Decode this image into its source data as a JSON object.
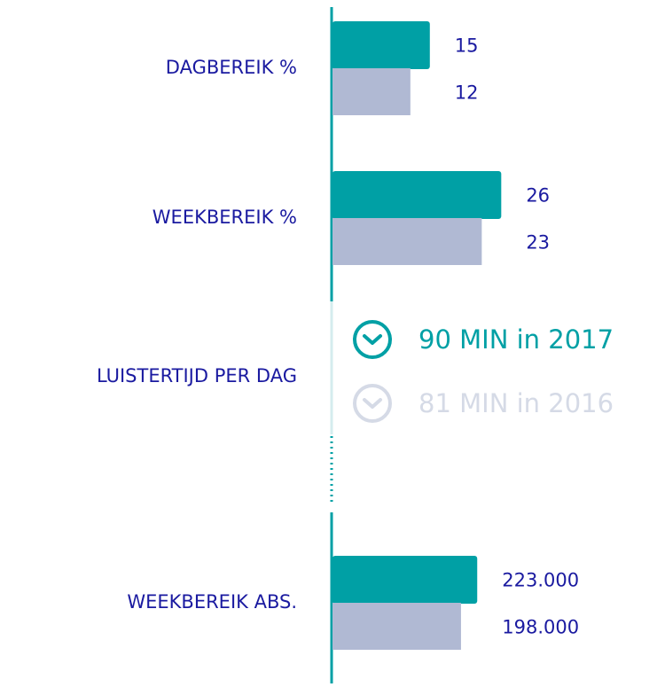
{
  "chart_data": [
    {
      "type": "bar",
      "orientation": "horizontal",
      "categories": [
        "DAGBEREIK %",
        "WEEKBEREIK %"
      ],
      "series": [
        {
          "color": "#00a0a5",
          "values": [
            15,
            26
          ]
        },
        {
          "color": "#b0b9d3",
          "values": [
            12,
            23
          ]
        }
      ],
      "xlim": [
        0,
        50
      ]
    },
    {
      "type": "text",
      "categories": [
        "LUISTERTIJD PER DAG"
      ],
      "lines": [
        {
          "text": "90 MIN in 2017",
          "color": "#00a0a5"
        },
        {
          "text": "81 MIN in 2016",
          "color": "#d5dae6"
        }
      ]
    },
    {
      "type": "bar",
      "orientation": "horizontal",
      "categories": [
        "WEEKBEREIK ABS."
      ],
      "series": [
        {
          "color": "#00a0a5",
          "values": [
            223000
          ],
          "value_labels": [
            "223.000"
          ]
        },
        {
          "color": "#b0b9d3",
          "values": [
            198000
          ],
          "value_labels": [
            "198.000"
          ]
        }
      ],
      "xlim": [
        0,
        500000
      ]
    }
  ]
}
